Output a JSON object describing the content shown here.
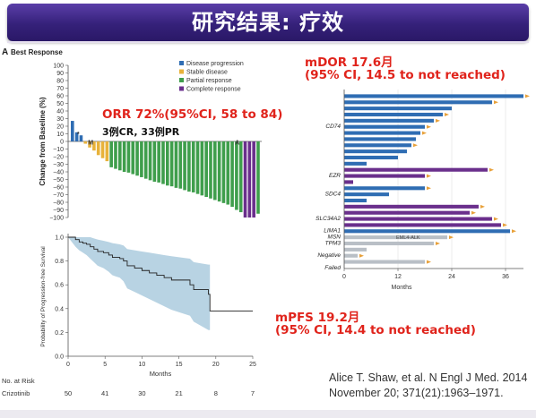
{
  "slide": {
    "title": "研究结果: 疗效",
    "orr_text": "ORR 72%(95%CI, 58 to 84)",
    "cr_pr_text": "3例CR, 33例PR",
    "mdor_line1": "mDOR 17.6月",
    "mdor_line2": "(95% CI, 14.5 to not reached)",
    "mpfs_line1": "mPFS 19.2月",
    "mpfs_line2": "(95% CI, 14.4 to not reached)",
    "citation_line1": "Alice T. Shaw, et al. N Engl J Med. 2014",
    "citation_line2": "November 20; 371(21):1963–1971."
  },
  "colors": {
    "progression": "#2f6db3",
    "stable": "#e8b23a",
    "partial": "#3f9e4c",
    "complete": "#6a2f8c",
    "km_band": "#b8d3e3",
    "dor_bar_blue": "#2f6db3",
    "dor_bar_purple": "#6a2f8c",
    "dor_bar_gray": "#b9bfc6",
    "arrow": "#e8a13a"
  },
  "chart_data": [
    {
      "type": "bar",
      "panel_letter": "A",
      "title": "Best Response",
      "ylabel": "Change from Baseline (%)",
      "ylim": [
        -100,
        100
      ],
      "yticks": [
        100,
        90,
        80,
        70,
        60,
        50,
        40,
        30,
        20,
        10,
        0,
        -10,
        -20,
        -30,
        -40,
        -50,
        -60,
        -70,
        -80,
        -90,
        -100
      ],
      "ytick_labels": [
        "100",
        "90",
        "80",
        "70",
        "60",
        "50",
        "40",
        "30",
        "20",
        "10",
        "0",
        "−10",
        "−20",
        "−30",
        "−40",
        "−50",
        "−60",
        "−70",
        "−80",
        "−90",
        "−100"
      ],
      "legend": [
        {
          "label": "Disease progression",
          "category": "progression"
        },
        {
          "label": "Stable disease",
          "category": "stable"
        },
        {
          "label": "Partial response",
          "category": "partial"
        },
        {
          "label": "Complete response",
          "category": "complete"
        }
      ],
      "annotations": [
        "*",
        "M",
        "A"
      ],
      "bars": [
        {
          "value": 27,
          "category": "progression"
        },
        {
          "value": 12,
          "category": "progression"
        },
        {
          "value": 8,
          "category": "progression"
        },
        {
          "value": -3,
          "category": "stable"
        },
        {
          "value": -8,
          "category": "stable"
        },
        {
          "value": -12,
          "category": "stable"
        },
        {
          "value": -18,
          "category": "stable"
        },
        {
          "value": -22,
          "category": "stable"
        },
        {
          "value": -26,
          "category": "stable"
        },
        {
          "value": -34,
          "category": "partial"
        },
        {
          "value": -36,
          "category": "partial"
        },
        {
          "value": -38,
          "category": "partial"
        },
        {
          "value": -40,
          "category": "partial"
        },
        {
          "value": -41,
          "category": "partial"
        },
        {
          "value": -43,
          "category": "partial"
        },
        {
          "value": -45,
          "category": "partial"
        },
        {
          "value": -47,
          "category": "partial"
        },
        {
          "value": -49,
          "category": "partial"
        },
        {
          "value": -51,
          "category": "partial"
        },
        {
          "value": -53,
          "category": "partial"
        },
        {
          "value": -54,
          "category": "partial"
        },
        {
          "value": -56,
          "category": "partial"
        },
        {
          "value": -58,
          "category": "partial"
        },
        {
          "value": -59,
          "category": "partial"
        },
        {
          "value": -61,
          "category": "partial"
        },
        {
          "value": -62,
          "category": "partial"
        },
        {
          "value": -64,
          "category": "partial"
        },
        {
          "value": -66,
          "category": "partial"
        },
        {
          "value": -67,
          "category": "partial"
        },
        {
          "value": -69,
          "category": "partial"
        },
        {
          "value": -71,
          "category": "partial"
        },
        {
          "value": -73,
          "category": "partial"
        },
        {
          "value": -75,
          "category": "partial"
        },
        {
          "value": -77,
          "category": "partial"
        },
        {
          "value": -79,
          "category": "partial"
        },
        {
          "value": -81,
          "category": "partial"
        },
        {
          "value": -83,
          "category": "partial"
        },
        {
          "value": -86,
          "category": "partial"
        },
        {
          "value": -90,
          "category": "partial"
        },
        {
          "value": -93,
          "category": "partial"
        },
        {
          "value": -100,
          "category": "complete"
        },
        {
          "value": -100,
          "category": "complete"
        },
        {
          "value": -100,
          "category": "complete"
        },
        {
          "value": -95,
          "category": "partial"
        }
      ]
    },
    {
      "type": "line",
      "ylabel": "Probability of Progression-free Survival",
      "xlabel": "Months",
      "xlim": [
        0,
        25
      ],
      "ylim": [
        0,
        1.0
      ],
      "xticks": [
        0,
        5,
        10,
        15,
        20,
        25
      ],
      "yticks": [
        0,
        0.2,
        0.4,
        0.6,
        0.8,
        1.0
      ],
      "ytick_labels": [
        "0.0",
        "0.2",
        "0.4",
        "0.6",
        "0.8",
        "1.0"
      ],
      "survival": {
        "x": [
          0,
          1,
          1.5,
          2,
          2.5,
          3,
          3.5,
          4,
          4.8,
          5.5,
          6,
          7,
          7.5,
          8,
          9,
          10,
          11,
          12,
          13,
          14,
          16.5,
          17,
          19,
          19.2,
          25
        ],
        "y": [
          1.0,
          0.98,
          0.96,
          0.95,
          0.94,
          0.92,
          0.9,
          0.88,
          0.87,
          0.85,
          0.83,
          0.82,
          0.8,
          0.76,
          0.74,
          0.72,
          0.7,
          0.68,
          0.66,
          0.64,
          0.6,
          0.56,
          0.52,
          0.38,
          0.38
        ]
      },
      "ci_upper": [
        1.0,
        1.0,
        1.0,
        1.0,
        1.0,
        1.0,
        0.99,
        0.98,
        0.97,
        0.96,
        0.95,
        0.94,
        0.93,
        0.9,
        0.89,
        0.88,
        0.87,
        0.86,
        0.85,
        0.84,
        0.82,
        0.79,
        0.77,
        0.77,
        0.77
      ],
      "ci_lower": [
        1.0,
        0.92,
        0.89,
        0.87,
        0.85,
        0.82,
        0.79,
        0.76,
        0.74,
        0.71,
        0.68,
        0.66,
        0.63,
        0.57,
        0.54,
        0.51,
        0.48,
        0.45,
        0.42,
        0.39,
        0.34,
        0.29,
        0.22,
        0.22,
        0.22
      ],
      "at_risk": {
        "header": "No. at Risk",
        "row_label": "Crizotinib",
        "values": [
          "50",
          "41",
          "30",
          "21",
          "8",
          "7"
        ]
      }
    },
    {
      "type": "bar",
      "orientation": "horizontal",
      "xlabel": "Months",
      "xlim": [
        0,
        40
      ],
      "xticks": [
        0,
        12,
        24,
        36
      ],
      "group_labels": [
        {
          "label": "CD74",
          "row": 5
        },
        {
          "label": "EZR",
          "row": 13
        },
        {
          "label": "SDC4",
          "row": 16
        },
        {
          "label": "SLC34A2",
          "row": 20
        },
        {
          "label": "LIMA1",
          "row": 22
        },
        {
          "label": "MSN",
          "row": 23
        },
        {
          "label": "TPM3",
          "row": 24
        },
        {
          "label": "Negative",
          "row": 26
        },
        {
          "label": "Failed",
          "row": 28
        }
      ],
      "annotation": "EML4-ALK",
      "bars": [
        {
          "value": 40,
          "group": "CD74",
          "ongoing": true
        },
        {
          "value": 33,
          "group": "CD74",
          "ongoing": true
        },
        {
          "value": 24,
          "group": "CD74",
          "ongoing": false
        },
        {
          "value": 22,
          "group": "CD74",
          "ongoing": true
        },
        {
          "value": 20,
          "group": "CD74",
          "ongoing": true
        },
        {
          "value": 18,
          "group": "CD74",
          "ongoing": true
        },
        {
          "value": 17,
          "group": "CD74",
          "ongoing": true
        },
        {
          "value": 16,
          "group": "CD74",
          "ongoing": false
        },
        {
          "value": 15,
          "group": "CD74",
          "ongoing": true
        },
        {
          "value": 14,
          "group": "CD74",
          "ongoing": false
        },
        {
          "value": 12,
          "group": "CD74",
          "ongoing": false
        },
        {
          "value": 5,
          "group": "CD74",
          "ongoing": false
        },
        {
          "value": 32,
          "group": "EZR",
          "ongoing": true
        },
        {
          "value": 18,
          "group": "EZR",
          "ongoing": true
        },
        {
          "value": 2,
          "group": "EZR",
          "ongoing": false
        },
        {
          "value": 18,
          "group": "SDC4",
          "ongoing": true
        },
        {
          "value": 10,
          "group": "SDC4",
          "ongoing": false
        },
        {
          "value": 5,
          "group": "SDC4",
          "ongoing": false
        },
        {
          "value": 30,
          "group": "SLC34A2",
          "ongoing": true
        },
        {
          "value": 28,
          "group": "SLC34A2",
          "ongoing": true
        },
        {
          "value": 33,
          "group": "LIMA1",
          "ongoing": true
        },
        {
          "value": 35,
          "group": "MSN",
          "ongoing": true
        },
        {
          "value": 37,
          "group": "TPM3",
          "ongoing": true
        },
        {
          "value": 23,
          "group": "EML4-ALK",
          "ongoing": true
        },
        {
          "value": 20,
          "group": "Negative",
          "ongoing": true
        },
        {
          "value": 5,
          "group": "Negative",
          "ongoing": false
        },
        {
          "value": 3,
          "group": "Failed",
          "ongoing": true
        },
        {
          "value": 18,
          "group": "Failed",
          "ongoing": true
        }
      ]
    }
  ]
}
